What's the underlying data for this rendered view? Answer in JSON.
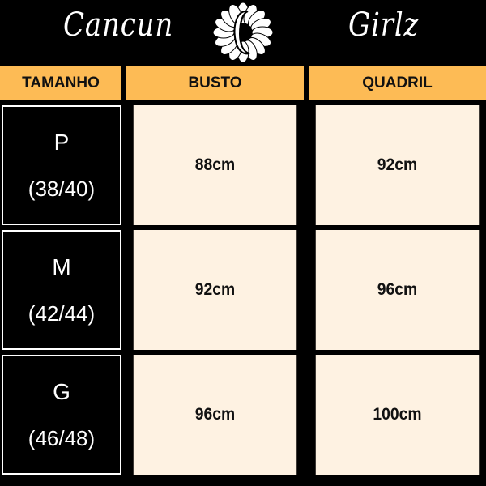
{
  "brand": {
    "left": "Cancun",
    "right": "Girlz",
    "logo_icon": "flower-c-logo"
  },
  "headers": [
    "TAMANHO",
    "BUSTO",
    "QUADRIL"
  ],
  "rows": [
    {
      "size": "P",
      "range": "(38/40)",
      "busto": "88cm",
      "quadril": "92cm"
    },
    {
      "size": "M",
      "range": "(42/44)",
      "busto": "92cm",
      "quadril": "96cm"
    },
    {
      "size": "G",
      "range": "(46/48)",
      "busto": "96cm",
      "quadril": "100cm"
    }
  ],
  "colors": {
    "header": "#FDBB55",
    "cell": "#FEF2E2",
    "background": "#000000"
  }
}
